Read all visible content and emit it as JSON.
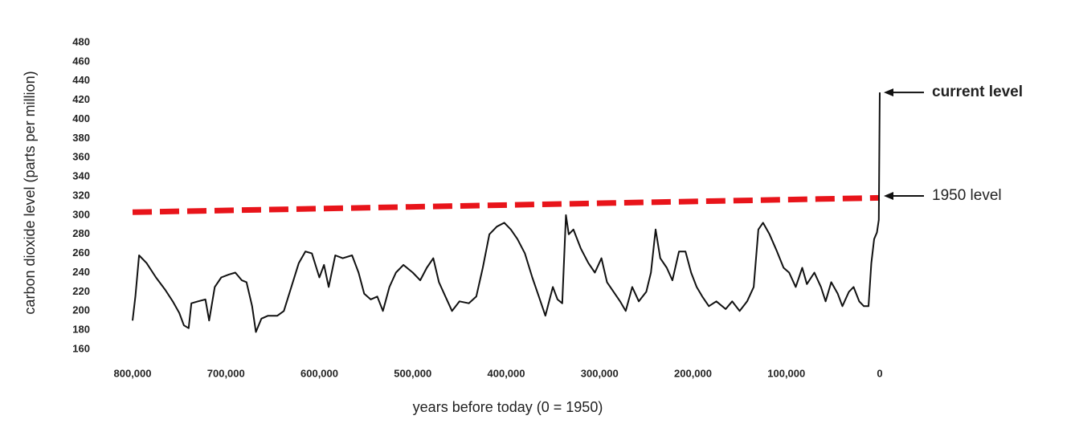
{
  "chart_data": {
    "type": "line",
    "ylabel": "carbon dioxide level (parts per million)",
    "xlabel": "years before today (0 = 1950)",
    "x": [
      800000,
      797000,
      793000,
      785000,
      775000,
      765000,
      757000,
      750000,
      745000,
      740000,
      737000,
      730000,
      722000,
      718000,
      712000,
      705000,
      697000,
      690000,
      683000,
      678000,
      672000,
      668000,
      662000,
      655000,
      645000,
      638000,
      630000,
      622000,
      615000,
      608000,
      600000,
      595000,
      590000,
      583000,
      575000,
      565000,
      558000,
      552000,
      545000,
      538000,
      532000,
      525000,
      518000,
      510000,
      500000,
      492000,
      485000,
      478000,
      472000,
      465000,
      458000,
      450000,
      440000,
      432000,
      425000,
      418000,
      410000,
      402000,
      395000,
      388000,
      380000,
      372000,
      365000,
      358000,
      350000,
      345000,
      340000,
      336000,
      333000,
      328000,
      320000,
      312000,
      305000,
      298000,
      292000,
      285000,
      278000,
      272000,
      265000,
      258000,
      250000,
      245000,
      240000,
      235000,
      228000,
      222000,
      215000,
      208000,
      202000,
      196000,
      190000,
      183000,
      175000,
      165000,
      158000,
      150000,
      142000,
      135000,
      130000,
      125000,
      118000,
      110000,
      103000,
      97000,
      90000,
      83000,
      78000,
      70000,
      63000,
      58000,
      52000,
      45000,
      40000,
      33000,
      28000,
      22000,
      17000,
      12000,
      9000,
      6000,
      3000,
      1000,
      0
    ],
    "values": [
      190,
      215,
      258,
      250,
      235,
      222,
      210,
      198,
      185,
      182,
      208,
      210,
      212,
      190,
      225,
      235,
      238,
      240,
      232,
      230,
      205,
      178,
      192,
      195,
      195,
      200,
      225,
      250,
      262,
      260,
      235,
      248,
      225,
      258,
      255,
      258,
      240,
      218,
      212,
      215,
      200,
      225,
      240,
      248,
      240,
      232,
      245,
      255,
      230,
      215,
      200,
      210,
      208,
      215,
      245,
      280,
      288,
      292,
      285,
      275,
      260,
      235,
      215,
      195,
      225,
      212,
      208,
      300,
      280,
      285,
      265,
      250,
      240,
      255,
      230,
      220,
      210,
      200,
      225,
      210,
      220,
      240,
      285,
      255,
      245,
      232,
      262,
      262,
      240,
      225,
      215,
      205,
      210,
      202,
      210,
      200,
      210,
      225,
      285,
      292,
      280,
      262,
      245,
      240,
      225,
      245,
      228,
      240,
      225,
      210,
      230,
      218,
      205,
      220,
      225,
      210,
      205,
      205,
      250,
      275,
      282,
      295,
      428
    ],
    "color": "#111111",
    "reference_line": {
      "x": [
        800000,
        0
      ],
      "values": [
        303,
        318
      ],
      "color": "#e8141a"
    },
    "annotations": [
      {
        "text": "current level",
        "value": 428
      },
      {
        "text": "1950 level",
        "value": 320
      }
    ],
    "xlim": [
      800000,
      0
    ],
    "xticks": [
      {
        "value": 800000,
        "label": "800,000"
      },
      {
        "value": 700000,
        "label": "700,000"
      },
      {
        "value": 600000,
        "label": "600,000"
      },
      {
        "value": 500000,
        "label": "500,000"
      },
      {
        "value": 400000,
        "label": "400,000"
      },
      {
        "value": 300000,
        "label": "300,000"
      },
      {
        "value": 200000,
        "label": "200,000"
      },
      {
        "value": 100000,
        "label": "100,000"
      },
      0
    ],
    "ylim": [
      160,
      480
    ],
    "yticks": [
      160,
      180,
      200,
      220,
      240,
      260,
      280,
      300,
      320,
      340,
      360,
      380,
      400,
      420,
      440,
      460,
      480
    ]
  }
}
